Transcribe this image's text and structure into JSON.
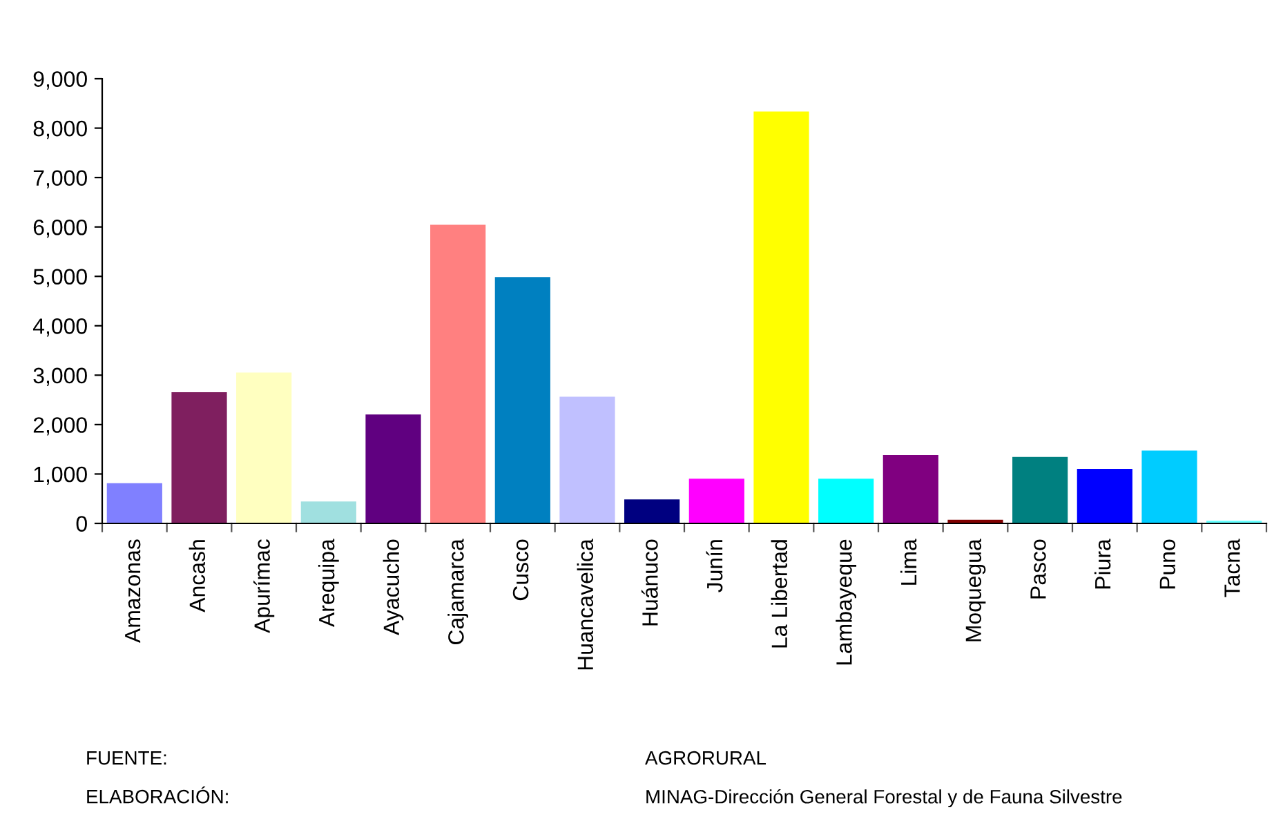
{
  "chart_data": {
    "type": "bar",
    "categories": [
      "Amazonas",
      "Ancash",
      "Apurímac",
      "Arequipa",
      "Ayacucho",
      "Cajamarca",
      "Cusco",
      "Huancavelica",
      "Huánuco",
      "Junín",
      "La Libertad",
      "Lambayeque",
      "Lima",
      "Moquegua",
      "Pasco",
      "Piura",
      "Puno",
      "Tacna"
    ],
    "values": [
      830,
      2670,
      3070,
      460,
      2220,
      6060,
      5000,
      2580,
      500,
      920,
      8350,
      920,
      1400,
      90,
      1360,
      1120,
      1490,
      70
    ],
    "colors": [
      "#8080ff",
      "#7f1f5f",
      "#ffffc0",
      "#a0e0e0",
      "#600080",
      "#ff8080",
      "#0080c0",
      "#c0c0ff",
      "#000080",
      "#ff00ff",
      "#ffff00",
      "#00ffff",
      "#800080",
      "#800000",
      "#008080",
      "#0000ff",
      "#00ccff",
      "#66ffff"
    ],
    "ylim": [
      0,
      9000
    ],
    "yticks": [
      {
        "value": 0,
        "label": "0"
      },
      {
        "value": 1000,
        "label": "1,000"
      },
      {
        "value": 2000,
        "label": "2,000"
      },
      {
        "value": 3000,
        "label": "3,000"
      },
      {
        "value": 4000,
        "label": "4,000"
      },
      {
        "value": 5000,
        "label": "5,000"
      },
      {
        "value": 6000,
        "label": "6,000"
      },
      {
        "value": 7000,
        "label": "7,000"
      },
      {
        "value": 8000,
        "label": "8,000"
      },
      {
        "value": 9000,
        "label": "9,000"
      }
    ],
    "grid": false,
    "legend": false,
    "annotations": [
      "FUENTE:",
      "AGRORURAL",
      "ELABORACIÓN:",
      "MINAG-Dirección General Forestal y de Fauna Silvestre"
    ]
  }
}
